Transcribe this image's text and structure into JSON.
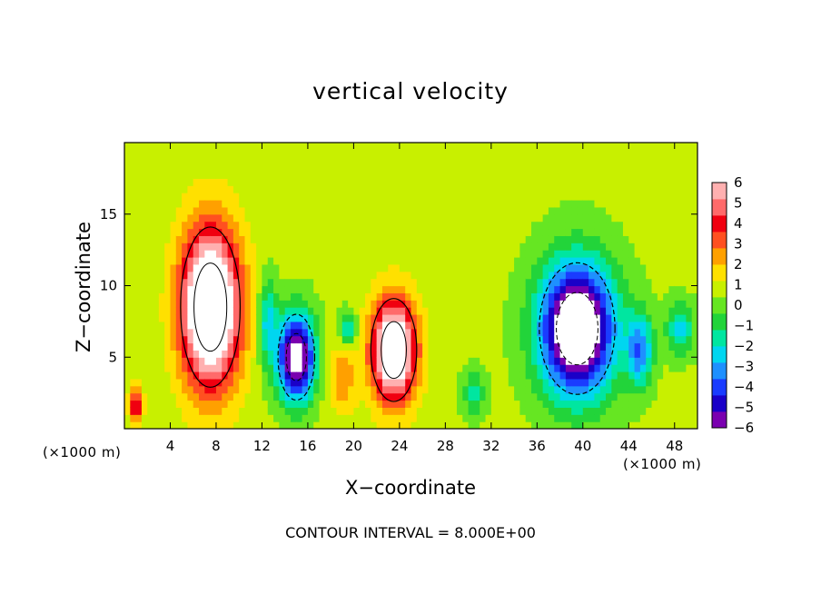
{
  "chart_data": {
    "type": "heatmap",
    "title": "vertical velocity",
    "xlabel": "X−coordinate",
    "ylabel": "Z−coordinate",
    "x_unit_label": "(×1000 m)",
    "footer": "CONTOUR INTERVAL = 8.000E+00",
    "xlim": [
      0,
      50
    ],
    "ylim": [
      0,
      20
    ],
    "x_ticks": [
      4,
      8,
      12,
      16,
      20,
      24,
      28,
      32,
      36,
      40,
      44,
      48
    ],
    "y_ticks": [
      5,
      10,
      15
    ],
    "colorbar": {
      "min": -6,
      "max": 6,
      "ticks": [
        6,
        5,
        4,
        3,
        2,
        1,
        0,
        -1,
        -2,
        -3,
        -4,
        -5,
        -6
      ],
      "tick_labels": [
        "6",
        "5",
        "4",
        "3",
        "2",
        "1",
        "0",
        "−1",
        "−2",
        "−3",
        "−4",
        "−5",
        "−6"
      ],
      "colors": [
        "#7a00b0",
        "#1a00c8",
        "#1a3cff",
        "#1e90ff",
        "#00d6f0",
        "#00e6a0",
        "#22d43a",
        "#66e622",
        "#c8f000",
        "#ffe000",
        "#ffa000",
        "#ff5020",
        "#f00010",
        "#ff6a6a",
        "#ffb0b0"
      ]
    },
    "features": [
      {
        "label": "updraft core",
        "x": 7.5,
        "z": 8.5,
        "sx": 2.6,
        "sz": 5.6,
        "w": 9
      },
      {
        "label": "updraft core",
        "x": 23.5,
        "z": 5.5,
        "sx": 2.0,
        "sz": 3.6,
        "w": 8
      },
      {
        "label": "updraft",
        "x": 1.0,
        "z": 1.6,
        "sx": 0.6,
        "sz": 1.3,
        "w": 4
      },
      {
        "label": "weak updraft",
        "x": 19.0,
        "z": 3.5,
        "sx": 1.2,
        "sz": 2.5,
        "w": 2
      },
      {
        "label": "downdraft core",
        "x": 39.5,
        "z": 7.0,
        "sx": 3.3,
        "sz": 4.6,
        "w": -9
      },
      {
        "label": "downdraft core",
        "x": 15.0,
        "z": 5.0,
        "sx": 1.6,
        "sz": 3.0,
        "w": -8
      },
      {
        "label": "downdraft",
        "x": 19.5,
        "z": 7.0,
        "sx": 0.7,
        "sz": 1.2,
        "w": -3
      },
      {
        "label": "downdraft",
        "x": 12.5,
        "z": 7.5,
        "sx": 0.8,
        "sz": 3.0,
        "w": -3
      },
      {
        "label": "downdraft",
        "x": 45.0,
        "z": 5.5,
        "sx": 1.1,
        "sz": 2.5,
        "w": -4
      },
      {
        "label": "downdraft",
        "x": 48.5,
        "z": 7.0,
        "sx": 1.2,
        "sz": 1.8,
        "w": -3
      },
      {
        "label": "downdraft",
        "x": 30.5,
        "z": 2.5,
        "sx": 1.0,
        "sz": 1.6,
        "w": -2
      }
    ]
  }
}
